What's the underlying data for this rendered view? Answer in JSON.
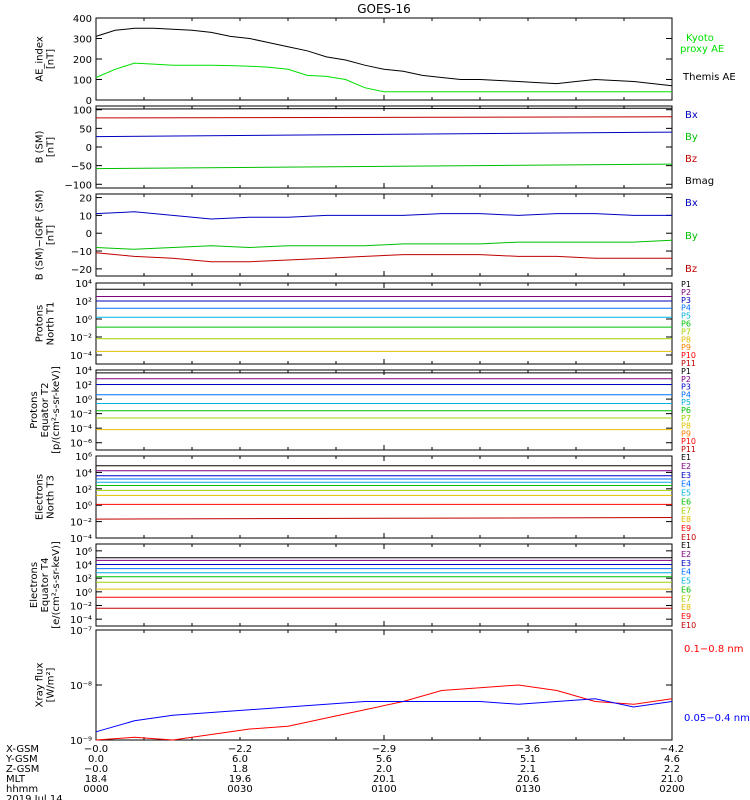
{
  "title": "GOES-16",
  "chart_data": [
    {
      "type": "line",
      "ylabel": [
        "AE_index",
        "[nT]"
      ],
      "ylim": [
        0,
        400
      ],
      "yticks": [
        "0",
        "100",
        "200",
        "300",
        "400"
      ],
      "yscale": "linear",
      "x": [
        0,
        2,
        4,
        6,
        8,
        10,
        12,
        14,
        16,
        18,
        20,
        22,
        24,
        26,
        28,
        30,
        32,
        34,
        36,
        38,
        40,
        42,
        44,
        46,
        48,
        50,
        52,
        54,
        56,
        58,
        60
      ],
      "series": [
        {
          "name": "Kyoto proxy AE",
          "color": "#00e000",
          "values": [
            110,
            150,
            180,
            175,
            170,
            170,
            170,
            168,
            165,
            160,
            150,
            120,
            115,
            100,
            60,
            40,
            40,
            40,
            40,
            40,
            40,
            40,
            40,
            40,
            40,
            40,
            40,
            40,
            40,
            40,
            40
          ]
        },
        {
          "name": "Themis AE",
          "color": "#000000",
          "values": [
            310,
            340,
            350,
            350,
            345,
            340,
            330,
            310,
            300,
            280,
            260,
            240,
            210,
            195,
            170,
            150,
            140,
            120,
            110,
            100,
            100,
            95,
            90,
            85,
            80,
            90,
            100,
            95,
            90,
            80,
            70
          ]
        }
      ]
    },
    {
      "type": "line",
      "ylabel": [
        "B (SM)",
        "[nT]"
      ],
      "ylim": [
        -110,
        110
      ],
      "yticks": [
        "−100",
        "−50",
        "0",
        "50",
        "100"
      ],
      "ytick_values": [
        -100,
        -50,
        0,
        50,
        100
      ],
      "yscale": "linear",
      "x": [
        0,
        60
      ],
      "series": [
        {
          "name": "Bx",
          "color": "#0000c0",
          "values": [
            28,
            40
          ]
        },
        {
          "name": "By",
          "color": "#00c000",
          "values": [
            -58,
            -46
          ]
        },
        {
          "name": "Bz",
          "color": "#c00000",
          "values": [
            78,
            81
          ]
        },
        {
          "name": "Bmag",
          "color": "#000000",
          "values": [
            102,
            104
          ]
        }
      ]
    },
    {
      "type": "line",
      "ylabel": [
        "B (SM)−IGRF (SM)",
        "[nT]"
      ],
      "ylim": [
        -24,
        22
      ],
      "yticks": [
        "−20",
        "−10",
        "0",
        "10",
        "20"
      ],
      "ytick_values": [
        -20,
        -10,
        0,
        10,
        20
      ],
      "yscale": "linear",
      "x": [
        0,
        4,
        8,
        12,
        16,
        20,
        24,
        28,
        32,
        36,
        40,
        44,
        48,
        52,
        56,
        60
      ],
      "series": [
        {
          "name": "Bx",
          "color": "#0000c0",
          "values": [
            11,
            12,
            10,
            8,
            9,
            9,
            10,
            10,
            10,
            11,
            11,
            10,
            11,
            11,
            10,
            10
          ]
        },
        {
          "name": "By",
          "color": "#00c000",
          "values": [
            -8,
            -9,
            -8,
            -7,
            -8,
            -7,
            -7,
            -7,
            -6,
            -6,
            -6,
            -5,
            -5,
            -5,
            -5,
            -4
          ]
        },
        {
          "name": "Bz",
          "color": "#c00000",
          "values": [
            -11,
            -13,
            -14,
            -16,
            -16,
            -15,
            -14,
            -13,
            -12,
            -12,
            -12,
            -13,
            -13,
            -14,
            -14,
            -14
          ]
        }
      ]
    },
    {
      "type": "line",
      "ylabel": [
        "Protons",
        "North T1"
      ],
      "ylim": [
        -5,
        4
      ],
      "yticks": [
        "10⁻⁴",
        "10⁻²",
        "10⁰",
        "10²",
        "10⁴"
      ],
      "ytick_values": [
        -4,
        -2,
        0,
        2,
        4
      ],
      "yscale": "log10",
      "x": [
        0,
        60
      ],
      "series": [
        {
          "name": "P1",
          "color": "#000000",
          "values": [
            3.3,
            3.3
          ]
        },
        {
          "name": "P2",
          "color": "#800080",
          "values": [
            2.5,
            2.5
          ]
        },
        {
          "name": "P3",
          "color": "#0000c0",
          "values": [
            2.0,
            2.0
          ]
        },
        {
          "name": "P4",
          "color": "#0070ff",
          "values": [
            1.2,
            1.2
          ]
        },
        {
          "name": "P5",
          "color": "#00b0e0",
          "values": [
            0.2,
            0.2
          ]
        },
        {
          "name": "P6",
          "color": "#00c000",
          "values": [
            -0.9,
            -0.9
          ]
        },
        {
          "name": "P7",
          "color": "#a0d000",
          "values": [
            -2.2,
            -2.2
          ]
        },
        {
          "name": "P8",
          "color": "#e0c000",
          "values": [
            -3.6,
            -3.6
          ]
        },
        {
          "name": "P9",
          "color": "#ff8000"
        },
        {
          "name": "P10",
          "color": "#ff0000"
        },
        {
          "name": "P11",
          "color": "#c00000"
        }
      ]
    },
    {
      "type": "line",
      "ylabel": [
        "Protons",
        "Equator T2",
        "[p/(cm²-s-sr-keV)]"
      ],
      "ylim": [
        -7,
        4
      ],
      "yticks": [
        "10⁻⁶",
        "10⁻⁴",
        "10⁻²",
        "10⁰",
        "10²",
        "10⁴"
      ],
      "ytick_values": [
        -6,
        -4,
        -2,
        0,
        2,
        4
      ],
      "yscale": "log10",
      "x": [
        0,
        60
      ],
      "series": [
        {
          "name": "P1",
          "color": "#000000",
          "values": [
            3.6,
            3.6
          ]
        },
        {
          "name": "P2",
          "color": "#800080",
          "values": [
            2.8,
            2.8
          ]
        },
        {
          "name": "P3",
          "color": "#0000c0",
          "values": [
            2.0,
            2.0
          ]
        },
        {
          "name": "P4",
          "color": "#0070ff",
          "values": [
            0.6,
            0.6
          ]
        },
        {
          "name": "P5",
          "color": "#00b0e0",
          "values": [
            -0.6,
            -0.6
          ]
        },
        {
          "name": "P6",
          "color": "#00c000",
          "values": [
            -1.6,
            -1.6
          ]
        },
        {
          "name": "P7",
          "color": "#a0d000",
          "values": [
            -2.6,
            -2.6
          ]
        },
        {
          "name": "P8",
          "color": "#e0c000",
          "values": [
            -4.2,
            -4.2
          ]
        },
        {
          "name": "P9",
          "color": "#ff8000"
        },
        {
          "name": "P10",
          "color": "#ff0000"
        },
        {
          "name": "P11",
          "color": "#c00000"
        }
      ]
    },
    {
      "type": "line",
      "ylabel": [
        "Electrons",
        "North T3"
      ],
      "ylim": [
        -4,
        6
      ],
      "yticks": [
        "10⁻⁴",
        "10⁻²",
        "10⁰",
        "10²",
        "10⁴",
        "10⁶"
      ],
      "ytick_values": [
        -4,
        -2,
        0,
        2,
        4,
        6
      ],
      "yscale": "log10",
      "x": [
        0,
        60
      ],
      "series": [
        {
          "name": "E1",
          "color": "#000000",
          "values": [
            4.8,
            4.8
          ]
        },
        {
          "name": "E2",
          "color": "#800080",
          "values": [
            4.2,
            4.2
          ]
        },
        {
          "name": "E3",
          "color": "#0000c0",
          "values": [
            3.6,
            3.6
          ]
        },
        {
          "name": "E4",
          "color": "#0070ff",
          "values": [
            3.2,
            3.2
          ]
        },
        {
          "name": "E5",
          "color": "#00b0e0",
          "values": [
            2.8,
            2.8
          ]
        },
        {
          "name": "E6",
          "color": "#00c000",
          "values": [
            2.4,
            2.4
          ]
        },
        {
          "name": "E7",
          "color": "#a0d000",
          "values": [
            1.8,
            1.8
          ]
        },
        {
          "name": "E8",
          "color": "#e0c000",
          "values": [
            1.2,
            1.2
          ]
        },
        {
          "name": "E9",
          "color": "#ff0000",
          "values": [
            0.1,
            0.1
          ]
        },
        {
          "name": "E10",
          "color": "#c00000",
          "values": [
            -1.7,
            -1.5
          ]
        }
      ]
    },
    {
      "type": "line",
      "ylabel": [
        "Electrons",
        "Equator T4",
        "[e/(cm²-s-sr-keV)]"
      ],
      "ylim": [
        -5,
        7
      ],
      "yticks": [
        "10⁻⁴",
        "10⁻²",
        "10⁰",
        "10²",
        "10⁴",
        "10⁶"
      ],
      "ytick_values": [
        -4,
        -2,
        0,
        2,
        4,
        6
      ],
      "yscale": "log10",
      "x": [
        0,
        60
      ],
      "series": [
        {
          "name": "E1",
          "color": "#000000",
          "values": [
            5.0,
            5.0
          ]
        },
        {
          "name": "E2",
          "color": "#800080",
          "values": [
            4.6,
            4.6
          ]
        },
        {
          "name": "E3",
          "color": "#0000c0",
          "values": [
            4.0,
            4.0
          ]
        },
        {
          "name": "E4",
          "color": "#0070ff",
          "values": [
            3.4,
            3.4
          ]
        },
        {
          "name": "E5",
          "color": "#00b0e0",
          "values": [
            2.8,
            2.8
          ]
        },
        {
          "name": "E6",
          "color": "#00c000",
          "values": [
            2.2,
            2.2
          ]
        },
        {
          "name": "E7",
          "color": "#a0d000",
          "values": [
            1.4,
            1.4
          ]
        },
        {
          "name": "E8",
          "color": "#e0c000",
          "values": [
            0.4,
            0.4
          ]
        },
        {
          "name": "E9",
          "color": "#ff0000",
          "values": [
            -0.8,
            -0.8
          ]
        },
        {
          "name": "E10",
          "color": "#c00000",
          "values": [
            -2.4,
            -2.4
          ]
        }
      ]
    },
    {
      "type": "line",
      "ylabel": [
        "Xray flux",
        "[W/m²]"
      ],
      "ylim": [
        -9,
        -7
      ],
      "yticks": [
        "10⁻⁹",
        "10⁻⁸",
        "10⁻⁷"
      ],
      "ytick_values": [
        -9,
        -8,
        -7
      ],
      "yscale": "log10",
      "x": [
        0,
        4,
        8,
        12,
        16,
        20,
        24,
        28,
        32,
        36,
        40,
        44,
        48,
        52,
        56,
        60
      ],
      "series": [
        {
          "name": "0.1–0.8 nm",
          "color": "#ff0000",
          "values": [
            -9.0,
            -8.95,
            -9.0,
            -8.9,
            -8.8,
            -8.75,
            -8.6,
            -8.45,
            -8.3,
            -8.1,
            -8.05,
            -8.0,
            -8.1,
            -8.3,
            -8.35,
            -8.25
          ]
        },
        {
          "name": "0.05–0.4 nm",
          "color": "#0000ff",
          "values": [
            -8.85,
            -8.65,
            -8.55,
            -8.5,
            -8.45,
            -8.4,
            -8.35,
            -8.3,
            -8.3,
            -8.3,
            -8.3,
            -8.35,
            -8.3,
            -8.25,
            -8.4,
            -8.3
          ]
        }
      ]
    }
  ],
  "annotations": {
    "kyoto_label": [
      "Kyoto",
      "proxy AE"
    ],
    "themis_label": "Themis AE",
    "xray_long_label": "0.1−0.8 nm",
    "xray_short_label": "0.05−0.4 nm"
  },
  "ephemeris": {
    "row_labels": [
      "X-GSM",
      "Y-GSM",
      "Z-GSM",
      "MLT",
      "hhmm",
      "2019 Jul 14"
    ],
    "columns": [
      {
        "xgsm": "−0.0",
        "ygsm": "0.0",
        "zgsm": "−0.0",
        "mlt": "18.4",
        "hhmm": "0000"
      },
      {
        "xgsm": "−2.2",
        "ygsm": "6.0",
        "zgsm": "1.8",
        "mlt": "19.6",
        "hhmm": "0030"
      },
      {
        "xgsm": "−2.9",
        "ygsm": "5.6",
        "zgsm": "2.0",
        "mlt": "20.1",
        "hhmm": "0100"
      },
      {
        "xgsm": "−3.6",
        "ygsm": "5.1",
        "zgsm": "2.1",
        "mlt": "20.6",
        "hhmm": "0130"
      },
      {
        "xgsm": "−4.2",
        "ygsm": "4.6",
        "zgsm": "2.2",
        "mlt": "21.0",
        "hhmm": "0200"
      }
    ]
  }
}
